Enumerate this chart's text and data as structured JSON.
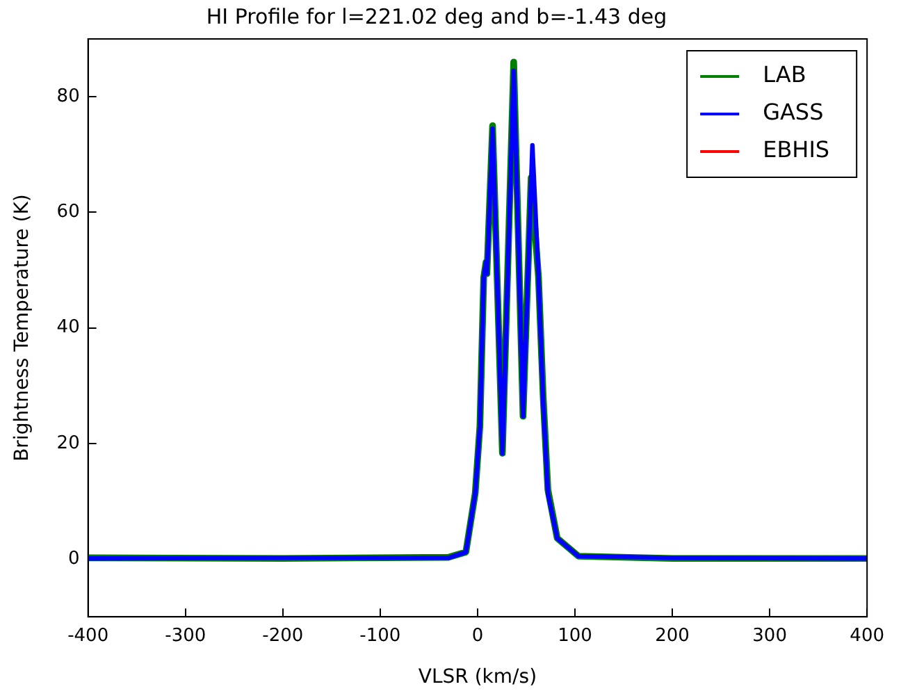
{
  "chart_data": {
    "type": "line",
    "title": "HI Profile for l=221.02 deg and b=-1.43 deg",
    "xlabel": "VLSR (km/s)",
    "ylabel": "Brightness Temperature (K)",
    "xlim": [
      -400,
      400
    ],
    "xticks": [
      -400,
      -300,
      -200,
      -100,
      0,
      100,
      200,
      300,
      400
    ],
    "ylim": [
      -10,
      90
    ],
    "yticks": [
      0,
      20,
      40,
      60,
      80
    ],
    "grid": false,
    "legend": "top right",
    "series": [
      {
        "name": "LAB",
        "color": "#008000",
        "x": [
          -400,
          -200,
          -30,
          -12,
          -2.4,
          2.4,
          6.3,
          8.7,
          9.6,
          15.4,
          25.5,
          37.1,
          46.7,
          55,
          62.6,
          67.4,
          72.2,
          81.8,
          103.5,
          200,
          400
        ],
        "values": [
          0.2,
          0.1,
          0.3,
          1.2,
          11.4,
          23,
          48.7,
          51.4,
          49.4,
          75,
          18.3,
          86,
          24.7,
          66,
          48.7,
          28,
          12,
          3.6,
          0.5,
          0.1,
          0.1
        ]
      },
      {
        "name": "GASS",
        "color": "#0000ff",
        "x": [
          -400,
          -200,
          -30,
          -12,
          -2.4,
          2.4,
          6.3,
          8.7,
          9.6,
          15.4,
          25.5,
          37.1,
          46.7,
          56.3,
          62.6,
          67.4,
          72.2,
          81.8,
          103.5,
          200,
          400
        ],
        "values": [
          0.1,
          0.2,
          0.2,
          1.2,
          11.4,
          23,
          48.7,
          51.4,
          49.4,
          74.5,
          18.3,
          84.5,
          24.7,
          71.6,
          48.7,
          26.9,
          11.4,
          3.6,
          0.5,
          0.2,
          0.1
        ]
      },
      {
        "name": "EBHIS",
        "color": "#ff0000"
      }
    ]
  }
}
